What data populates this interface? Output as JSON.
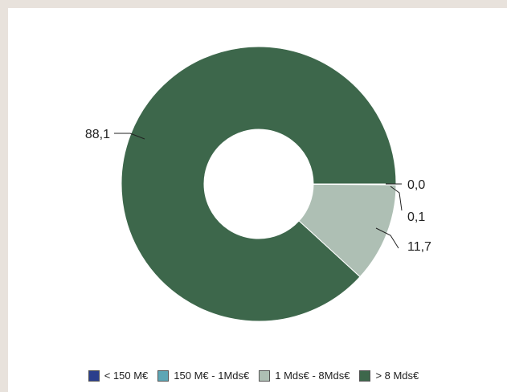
{
  "chart_data": {
    "type": "pie",
    "style": "donut",
    "categories": [
      "< 150 M€",
      "150 M€ - 1Mds€",
      "1 Mds€ - 8Mds€",
      "> 8 Mds€"
    ],
    "values": [
      0.0,
      0.1,
      11.7,
      88.1
    ],
    "data_labels": [
      "0,0",
      "0,1",
      "11,7",
      "88,1"
    ],
    "colors": [
      "#2b3f8c",
      "#5ea6b5",
      "#aebfb4",
      "#3d674b"
    ],
    "legend_position": "bottom"
  }
}
